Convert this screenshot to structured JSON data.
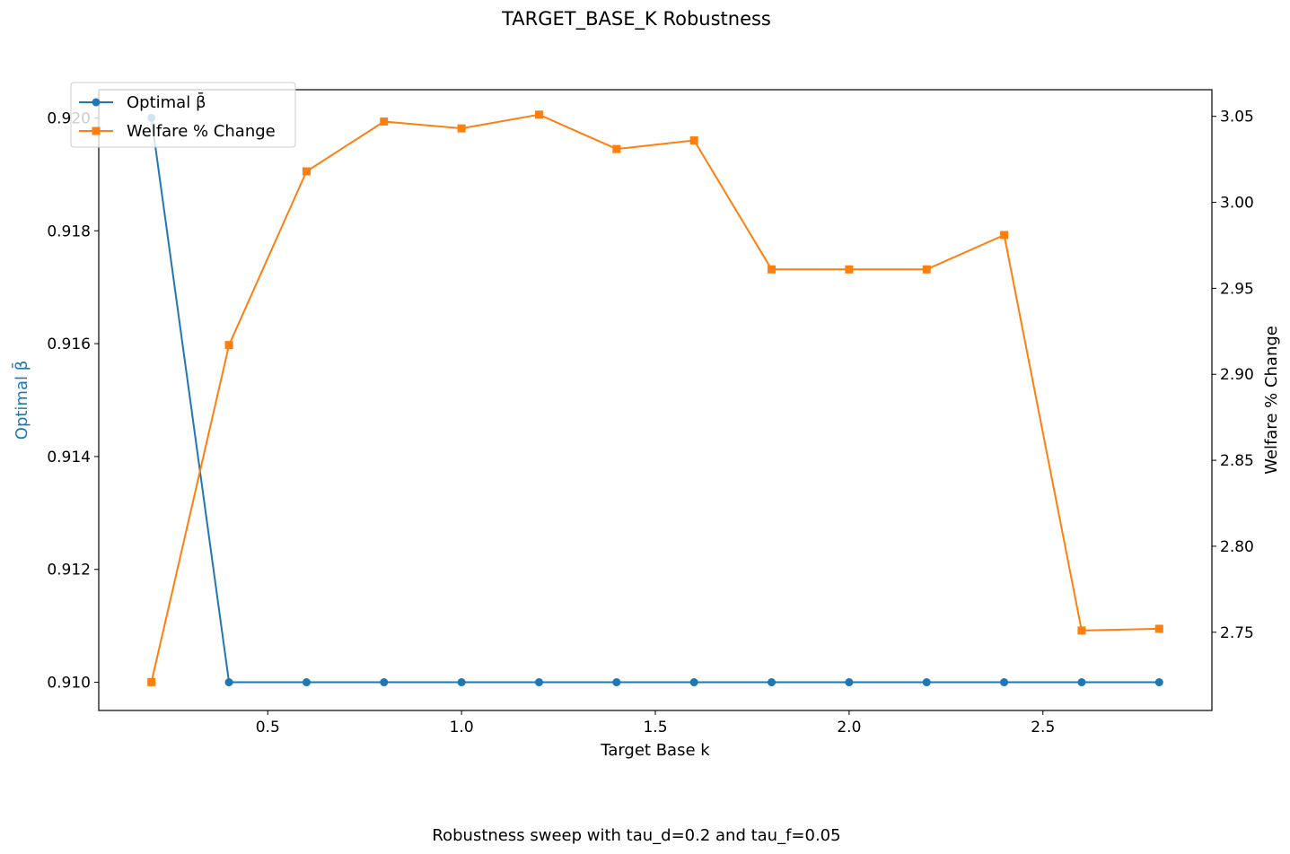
{
  "figure": {
    "title": "TARGET_BASE_K Robustness",
    "caption": "Robustness sweep with tau_d=0.2 and tau_f=0.05"
  },
  "chart_data": {
    "type": "line",
    "title": "TARGET_BASE_K Robustness",
    "xlabel": "Target Base k",
    "ylabel": "Optimal β̄",
    "ylabel_right": "Welfare % Change",
    "xlim": [
      0.064,
      2.936
    ],
    "ylim": [
      0.9095,
      0.9205
    ],
    "ylim_right": [
      2.7045,
      3.0655
    ],
    "x_ticks": [
      0.5,
      1.0,
      1.5,
      2.0,
      2.5
    ],
    "x_tick_labels": [
      "0.5",
      "1.0",
      "1.5",
      "2.0",
      "2.5"
    ],
    "y_ticks": [
      0.91,
      0.912,
      0.914,
      0.916,
      0.918,
      0.92
    ],
    "y_tick_labels": [
      "0.910",
      "0.912",
      "0.914",
      "0.916",
      "0.918",
      "0.920"
    ],
    "y_right_ticks": [
      2.75,
      2.8,
      2.85,
      2.9,
      2.95,
      3.0,
      3.05
    ],
    "y_right_tick_labels": [
      "2.75",
      "2.80",
      "2.85",
      "2.90",
      "2.95",
      "3.00",
      "3.05"
    ],
    "grid": false,
    "legend_position": "top-left",
    "x": [
      0.2,
      0.4,
      0.6,
      0.8,
      1.0,
      1.2,
      1.4,
      1.6,
      1.8,
      2.0,
      2.2,
      2.4,
      2.6,
      2.8
    ],
    "series": [
      {
        "name": "Optimal β̄",
        "axis": "left",
        "color": "#1f77b4",
        "marker": "circle",
        "values": [
          0.92,
          0.91,
          0.91,
          0.91,
          0.91,
          0.91,
          0.91,
          0.91,
          0.91,
          0.91,
          0.91,
          0.91,
          0.91,
          0.91
        ]
      },
      {
        "name": "Welfare % Change",
        "axis": "right",
        "color": "#ff7f0e",
        "marker": "square",
        "values": [
          2.721,
          2.917,
          3.018,
          3.047,
          3.043,
          3.051,
          3.031,
          3.036,
          2.961,
          2.961,
          2.961,
          2.981,
          2.751,
          2.752
        ]
      }
    ]
  }
}
